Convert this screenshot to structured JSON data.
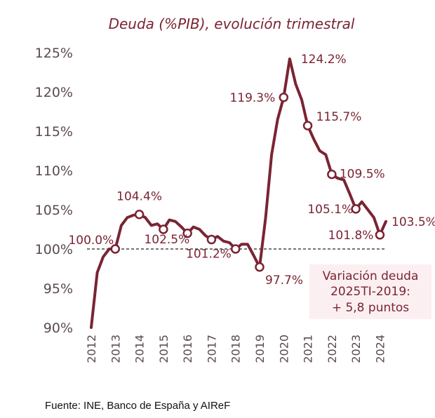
{
  "chart_data": {
    "type": "line",
    "title": "Deuda (%PIB), evolución trimestral",
    "ylim": [
      90,
      125
    ],
    "yticks": [
      "90%",
      "95%",
      "100%",
      "105%",
      "110%",
      "115%",
      "120%",
      "125%"
    ],
    "xticks": [
      "2012",
      "2013",
      "2014",
      "2015",
      "2016",
      "2017",
      "2018",
      "2019",
      "2020",
      "2021",
      "2022",
      "2023",
      "2024"
    ],
    "reference_line": 100,
    "series": [
      {
        "color": "#7a2433",
        "x": [
          2012.0,
          2012.25,
          2012.5,
          2012.75,
          2013.0,
          2013.25,
          2013.5,
          2013.75,
          2014.0,
          2014.25,
          2014.5,
          2014.75,
          2015.0,
          2015.25,
          2015.5,
          2015.75,
          2016.0,
          2016.25,
          2016.5,
          2016.75,
          2017.0,
          2017.25,
          2017.5,
          2017.75,
          2018.0,
          2018.25,
          2018.5,
          2018.75,
          2019.0,
          2019.25,
          2019.5,
          2019.75,
          2020.0,
          2020.25,
          2020.5,
          2020.75,
          2021.0,
          2021.25,
          2021.5,
          2021.75,
          2022.0,
          2022.25,
          2022.5,
          2022.75,
          2023.0,
          2023.25,
          2023.5,
          2023.75,
          2024.0,
          2024.25
        ],
        "y": [
          90.0,
          97.0,
          99.0,
          100.0,
          100.0,
          103.0,
          104.0,
          104.3,
          104.4,
          104.0,
          103.0,
          103.2,
          102.5,
          103.7,
          103.5,
          102.8,
          102.0,
          102.8,
          102.5,
          101.7,
          101.2,
          101.6,
          101.0,
          100.8,
          100.0,
          100.6,
          100.6,
          99.2,
          97.7,
          104.0,
          112.0,
          116.5,
          119.3,
          124.2,
          121.0,
          119.0,
          115.7,
          114.0,
          112.5,
          112.0,
          109.5,
          109.0,
          108.8,
          107.0,
          105.1,
          106.0,
          105.0,
          104.0,
          101.8,
          103.5
        ]
      }
    ],
    "markers": [
      {
        "x": 2013.0,
        "y": 100.0,
        "label": "100.0%"
      },
      {
        "x": 2014.0,
        "y": 104.4,
        "label": "104.4%"
      },
      {
        "x": 2015.0,
        "y": 102.5,
        "label": "102.5%"
      },
      {
        "x": 2016.0,
        "y": 102.0,
        "label": ""
      },
      {
        "x": 2017.0,
        "y": 101.2,
        "label": "101.2%"
      },
      {
        "x": 2018.0,
        "y": 100.0,
        "label": ""
      },
      {
        "x": 2019.0,
        "y": 97.7,
        "label": "97.7%"
      },
      {
        "x": 2020.0,
        "y": 119.3,
        "label": "119.3%"
      },
      {
        "x": 2020.25,
        "y": 124.2,
        "label": "124.2%",
        "open": false
      },
      {
        "x": 2021.0,
        "y": 115.7,
        "label": "115.7%"
      },
      {
        "x": 2022.0,
        "y": 109.5,
        "label": "109.5%"
      },
      {
        "x": 2023.0,
        "y": 105.1,
        "label": "105.1%"
      },
      {
        "x": 2024.0,
        "y": 101.8,
        "label": "101.8%"
      },
      {
        "x": 2024.25,
        "y": 103.5,
        "label": "103.5%",
        "open": false
      }
    ]
  },
  "note": {
    "line1": "Variación deuda",
    "line2": "2025TI-2019:",
    "line3": "+ 5,8 puntos",
    "bg_color": "#fbeff1",
    "text_color": "#7a2433"
  },
  "source": "Fuente: INE, Banco de España y AIReF"
}
